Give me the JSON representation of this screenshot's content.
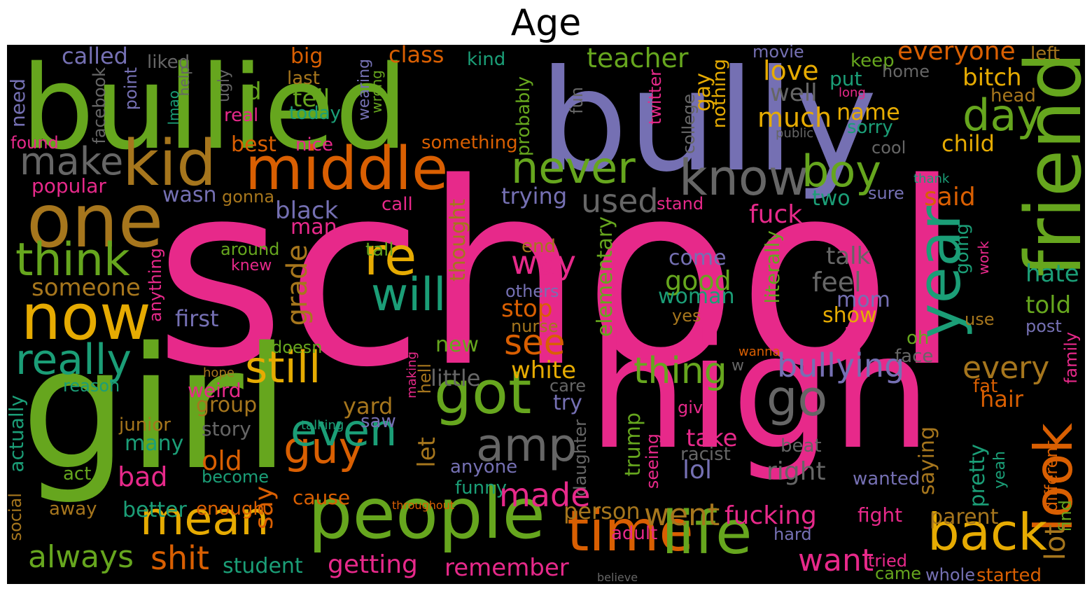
{
  "title": "Age",
  "palette": {
    "pink": "#e7298a",
    "green": "#66a61e",
    "purple": "#7570b3",
    "orange": "#d95f02",
    "teal": "#1b9e77",
    "yellow": "#e6ab02",
    "brown": "#a6761d",
    "gray": "#666666",
    "background": "#000000"
  },
  "words": [
    {
      "text": "school",
      "color": "pink"
    },
    {
      "text": "bully",
      "color": "purple"
    },
    {
      "text": "bullied",
      "color": "green"
    },
    {
      "text": "girl",
      "color": "green"
    },
    {
      "text": "high",
      "color": "pink"
    },
    {
      "text": "middle",
      "color": "orange"
    },
    {
      "text": "kid",
      "color": "brown"
    },
    {
      "text": "one",
      "color": "brown"
    },
    {
      "text": "make",
      "color": "gray"
    },
    {
      "text": "now",
      "color": "yellow"
    },
    {
      "text": "think",
      "color": "green"
    },
    {
      "text": "really",
      "color": "teal"
    },
    {
      "text": "people",
      "color": "green"
    },
    {
      "text": "got",
      "color": "green"
    },
    {
      "text": "amp",
      "color": "gray"
    },
    {
      "text": "re",
      "color": "yellow"
    },
    {
      "text": "will",
      "color": "teal"
    },
    {
      "text": "still",
      "color": "yellow"
    },
    {
      "text": "mean",
      "color": "yellow"
    },
    {
      "text": "guy",
      "color": "orange"
    },
    {
      "text": "even",
      "color": "teal"
    },
    {
      "text": "never",
      "color": "green"
    },
    {
      "text": "know",
      "color": "gray"
    },
    {
      "text": "boy",
      "color": "green"
    },
    {
      "text": "friend",
      "color": "green"
    },
    {
      "text": "year",
      "color": "teal"
    },
    {
      "text": "day",
      "color": "green"
    },
    {
      "text": "go",
      "color": "gray"
    },
    {
      "text": "look",
      "color": "orange"
    },
    {
      "text": "back",
      "color": "yellow"
    },
    {
      "text": "time",
      "color": "orange"
    },
    {
      "text": "life",
      "color": "green"
    },
    {
      "text": "bullying",
      "color": "purple"
    },
    {
      "text": "thing",
      "color": "green"
    },
    {
      "text": "see",
      "color": "orange"
    },
    {
      "text": "way",
      "color": "pink"
    },
    {
      "text": "used",
      "color": "gray"
    },
    {
      "text": "teacher",
      "color": "green"
    },
    {
      "text": "everyone",
      "color": "orange"
    },
    {
      "text": "love",
      "color": "yellow"
    },
    {
      "text": "much",
      "color": "yellow"
    },
    {
      "text": "well",
      "color": "gray"
    },
    {
      "text": "called",
      "color": "purple"
    },
    {
      "text": "liked",
      "color": "gray"
    },
    {
      "text": "big",
      "color": "orange"
    },
    {
      "text": "class",
      "color": "orange"
    },
    {
      "text": "kind",
      "color": "teal"
    },
    {
      "text": "movie",
      "color": "purple"
    },
    {
      "text": "left",
      "color": "brown"
    },
    {
      "text": "keep",
      "color": "green"
    },
    {
      "text": "home",
      "color": "gray"
    },
    {
      "text": "bitch",
      "color": "yellow"
    },
    {
      "text": "head",
      "color": "brown"
    },
    {
      "text": "put",
      "color": "teal"
    },
    {
      "text": "long",
      "color": "pink"
    },
    {
      "text": "name",
      "color": "yellow"
    },
    {
      "text": "sorry",
      "color": "teal"
    },
    {
      "text": "child",
      "color": "yellow"
    },
    {
      "text": "public",
      "color": "gray"
    },
    {
      "text": "cool",
      "color": "gray"
    },
    {
      "text": "need",
      "color": "purple"
    },
    {
      "text": "facebook",
      "color": "gray"
    },
    {
      "text": "point",
      "color": "purple"
    },
    {
      "text": "help",
      "color": "gray"
    },
    {
      "text": "lmao",
      "color": "teal"
    },
    {
      "text": "ugly",
      "color": "gray"
    },
    {
      "text": "last",
      "color": "brown"
    },
    {
      "text": "today",
      "color": "teal"
    },
    {
      "text": "tell",
      "color": "green"
    },
    {
      "text": "d",
      "color": "green"
    },
    {
      "text": "real",
      "color": "pink"
    },
    {
      "text": "wearing",
      "color": "purple"
    },
    {
      "text": "wrong",
      "color": "green"
    },
    {
      "text": "found",
      "color": "pink"
    },
    {
      "text": "best",
      "color": "orange"
    },
    {
      "text": "nice",
      "color": "pink"
    },
    {
      "text": "something",
      "color": "orange"
    },
    {
      "text": "probably",
      "color": "green"
    },
    {
      "text": "fun",
      "color": "gray"
    },
    {
      "text": "twitter",
      "color": "pink"
    },
    {
      "text": "college",
      "color": "gray"
    },
    {
      "text": "gay",
      "color": "yellow"
    },
    {
      "text": "nothing",
      "color": "yellow"
    },
    {
      "text": "popular",
      "color": "pink"
    },
    {
      "text": "wasn",
      "color": "purple"
    },
    {
      "text": "gonna",
      "color": "brown"
    },
    {
      "text": "call",
      "color": "pink"
    },
    {
      "text": "trying",
      "color": "purple"
    },
    {
      "text": "black",
      "color": "purple"
    },
    {
      "text": "man",
      "color": "pink"
    },
    {
      "text": "stand",
      "color": "pink"
    },
    {
      "text": "fuck",
      "color": "pink"
    },
    {
      "text": "two",
      "color": "teal"
    },
    {
      "text": "sure",
      "color": "purple"
    },
    {
      "text": "said",
      "color": "orange"
    },
    {
      "text": "thank",
      "color": "teal"
    },
    {
      "text": "around",
      "color": "green"
    },
    {
      "text": "knew",
      "color": "pink"
    },
    {
      "text": "tall",
      "color": "green"
    },
    {
      "text": "thought",
      "color": "brown"
    },
    {
      "text": "end",
      "color": "brown"
    },
    {
      "text": "elementary",
      "color": "green"
    },
    {
      "text": "come",
      "color": "purple"
    },
    {
      "text": "talk",
      "color": "gray"
    },
    {
      "text": "literally",
      "color": "green"
    },
    {
      "text": "going",
      "color": "teal"
    },
    {
      "text": "work",
      "color": "pink"
    },
    {
      "text": "hate",
      "color": "teal"
    },
    {
      "text": "someone",
      "color": "brown"
    },
    {
      "text": "anything",
      "color": "pink"
    },
    {
      "text": "grade",
      "color": "brown"
    },
    {
      "text": "first",
      "color": "purple"
    },
    {
      "text": "good",
      "color": "green"
    },
    {
      "text": "feel",
      "color": "gray"
    },
    {
      "text": "others",
      "color": "purple"
    },
    {
      "text": "stop",
      "color": "orange"
    },
    {
      "text": "woman",
      "color": "teal"
    },
    {
      "text": "mom",
      "color": "purple"
    },
    {
      "text": "told",
      "color": "green"
    },
    {
      "text": "nurse",
      "color": "brown"
    },
    {
      "text": "yes",
      "color": "brown"
    },
    {
      "text": "show",
      "color": "yellow"
    },
    {
      "text": "use",
      "color": "brown"
    },
    {
      "text": "post",
      "color": "purple"
    },
    {
      "text": "doesn",
      "color": "green"
    },
    {
      "text": "new",
      "color": "green"
    },
    {
      "text": "oh",
      "color": "green"
    },
    {
      "text": "wanna",
      "color": "orange"
    },
    {
      "text": "face",
      "color": "gray"
    },
    {
      "text": "every",
      "color": "brown"
    },
    {
      "text": "family",
      "color": "pink"
    },
    {
      "text": "hope",
      "color": "brown"
    },
    {
      "text": "making",
      "color": "pink"
    },
    {
      "text": "white",
      "color": "yellow"
    },
    {
      "text": "w",
      "color": "gray"
    },
    {
      "text": "reason",
      "color": "teal"
    },
    {
      "text": "little",
      "color": "gray"
    },
    {
      "text": "care",
      "color": "gray"
    },
    {
      "text": "weird",
      "color": "pink"
    },
    {
      "text": "hell",
      "color": "brown"
    },
    {
      "text": "fat",
      "color": "orange"
    },
    {
      "text": "group",
      "color": "brown"
    },
    {
      "text": "try",
      "color": "purple"
    },
    {
      "text": "give",
      "color": "pink"
    },
    {
      "text": "hair",
      "color": "orange"
    },
    {
      "text": "yard",
      "color": "brown"
    },
    {
      "text": "actually",
      "color": "teal"
    },
    {
      "text": "junior",
      "color": "brown"
    },
    {
      "text": "story",
      "color": "gray"
    },
    {
      "text": "talking",
      "color": "teal"
    },
    {
      "text": "saw",
      "color": "purple"
    },
    {
      "text": "daughter",
      "color": "gray"
    },
    {
      "text": "trump",
      "color": "green"
    },
    {
      "text": "seeing",
      "color": "pink"
    },
    {
      "text": "take",
      "color": "pink"
    },
    {
      "text": "beat",
      "color": "gray"
    },
    {
      "text": "many",
      "color": "teal"
    },
    {
      "text": "let",
      "color": "brown"
    },
    {
      "text": "racist",
      "color": "gray"
    },
    {
      "text": "old",
      "color": "orange"
    },
    {
      "text": "act",
      "color": "green"
    },
    {
      "text": "anyone",
      "color": "purple"
    },
    {
      "text": "lol",
      "color": "purple"
    },
    {
      "text": "right",
      "color": "gray"
    },
    {
      "text": "pretty",
      "color": "teal"
    },
    {
      "text": "saying",
      "color": "brown"
    },
    {
      "text": "yeah",
      "color": "teal"
    },
    {
      "text": "different",
      "color": "orange"
    },
    {
      "text": "bad",
      "color": "pink"
    },
    {
      "text": "become",
      "color": "teal"
    },
    {
      "text": "funny",
      "color": "teal"
    },
    {
      "text": "wanted",
      "color": "purple"
    },
    {
      "text": "social",
      "color": "brown"
    },
    {
      "text": "cause",
      "color": "orange"
    },
    {
      "text": "say",
      "color": "orange"
    },
    {
      "text": "made",
      "color": "pink"
    },
    {
      "text": "person",
      "color": "brown"
    },
    {
      "text": "went",
      "color": "brown"
    },
    {
      "text": "fucking",
      "color": "pink"
    },
    {
      "text": "parent",
      "color": "brown"
    },
    {
      "text": "find",
      "color": "green"
    },
    {
      "text": "away",
      "color": "brown"
    },
    {
      "text": "better",
      "color": "teal"
    },
    {
      "text": "enough",
      "color": "orange"
    },
    {
      "text": "throughout",
      "color": "orange"
    },
    {
      "text": "fight",
      "color": "pink"
    },
    {
      "text": "adult",
      "color": "pink"
    },
    {
      "text": "hard",
      "color": "purple"
    },
    {
      "text": "lot",
      "color": "brown"
    },
    {
      "text": "always",
      "color": "green"
    },
    {
      "text": "shit",
      "color": "orange"
    },
    {
      "text": "student",
      "color": "teal"
    },
    {
      "text": "getting",
      "color": "pink"
    },
    {
      "text": "remember",
      "color": "pink"
    },
    {
      "text": "want",
      "color": "pink"
    },
    {
      "text": "tried",
      "color": "pink"
    },
    {
      "text": "came",
      "color": "green"
    },
    {
      "text": "whole",
      "color": "purple"
    },
    {
      "text": "started",
      "color": "orange"
    },
    {
      "text": "believe",
      "color": "gray"
    }
  ]
}
